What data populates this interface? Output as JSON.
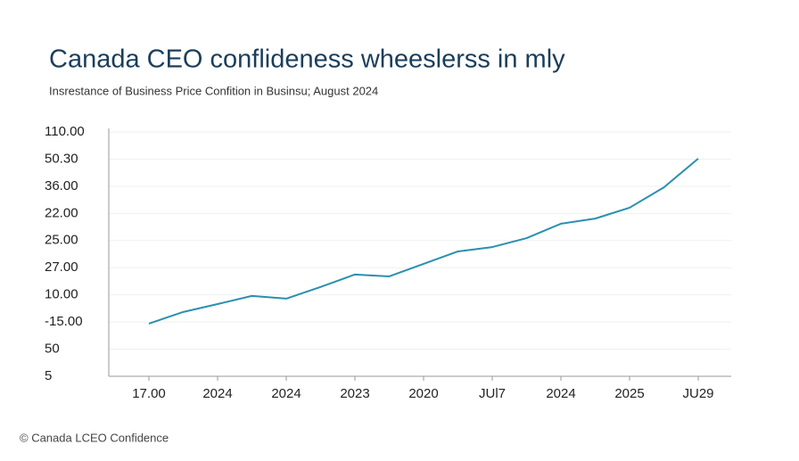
{
  "chart_data": {
    "type": "line",
    "title": "Canada CEO conflideness wheeslerss in mly",
    "subtitle": "Insrestance of Business Price Confition in Businsu; August 2024",
    "footer": "© Canada LCEO Confidence",
    "categories": [
      "17.00",
      null,
      "2024",
      null,
      "2024",
      null,
      "2023",
      null,
      "2020",
      null,
      "JUl7",
      null,
      "2024",
      null,
      "2025",
      null,
      "JU29"
    ],
    "series": [
      {
        "name": null,
        "color": "#2b8fb0",
        "values": [
          1.94,
          2.37,
          2.66,
          2.96,
          2.86,
          3.29,
          3.75,
          3.68,
          4.14,
          4.6,
          4.76,
          5.09,
          5.62,
          5.81,
          6.21,
          6.96,
          8.02
        ]
      }
    ],
    "ylim": [
      0,
      9
    ],
    "yticks": [
      {
        "value": 0,
        "label": "5"
      },
      {
        "value": 1,
        "label": "50"
      },
      {
        "value": 2,
        "label": "-15.00"
      },
      {
        "value": 3,
        "label": "10.00"
      },
      {
        "value": 4,
        "label": "27.00"
      },
      {
        "value": 5,
        "label": "25.00"
      },
      {
        "value": 6,
        "label": "22.00"
      },
      {
        "value": 7,
        "label": "36.00"
      },
      {
        "value": 8,
        "label": "50.30"
      },
      {
        "value": 9,
        "label": "110.00"
      }
    ],
    "grid": true
  }
}
